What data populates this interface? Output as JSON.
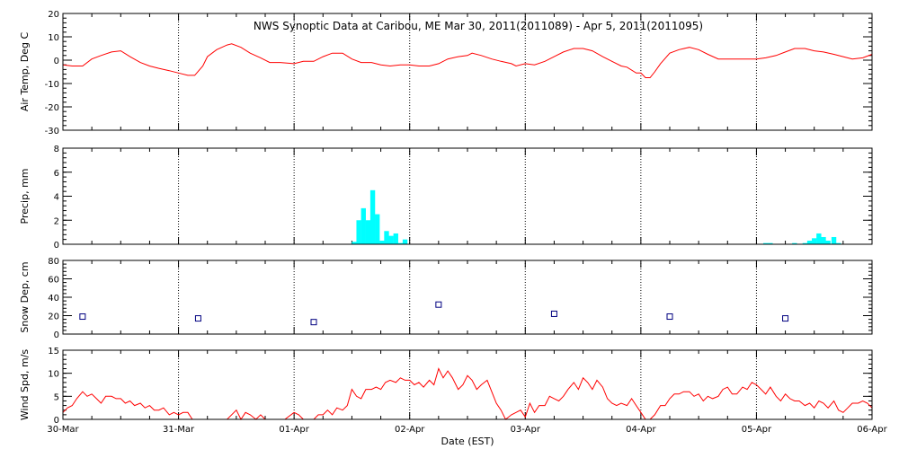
{
  "title": "NWS Synoptic Data at Caribou, ME   Mar 30, 2011(2011089) - Apr  5, 2011(2011095)",
  "xlabel": "Date (EST)",
  "x_ticks": [
    "30-Mar",
    "31-Mar",
    "01-Apr",
    "02-Apr",
    "03-Apr",
    "04-Apr",
    "05-Apr",
    "06-Apr"
  ],
  "colors": {
    "line": "#ff0000",
    "precip": "#00ffff",
    "snow": "#000080",
    "grid": "#000000"
  },
  "chart_data": [
    {
      "type": "line",
      "name": "air_temp",
      "ylabel": "Air Temp, Deg C",
      "ylim": [
        -30,
        20
      ],
      "yticks": [
        -30,
        -20,
        -10,
        0,
        10,
        20
      ],
      "xlim": [
        0,
        7
      ],
      "x_unit": "days since 30-Mar 00:00 EST",
      "grid": true,
      "points": [
        [
          0.0,
          -2.0
        ],
        [
          0.08,
          -2.5
        ],
        [
          0.17,
          -2.5
        ],
        [
          0.25,
          0.5
        ],
        [
          0.33,
          2.0
        ],
        [
          0.42,
          3.5
        ],
        [
          0.5,
          4.0
        ],
        [
          0.58,
          1.5
        ],
        [
          0.67,
          -1.0
        ],
        [
          0.75,
          -2.5
        ],
        [
          0.83,
          -3.5
        ],
        [
          0.92,
          -4.5
        ],
        [
          1.0,
          -5.5
        ],
        [
          1.08,
          -6.5
        ],
        [
          1.14,
          -6.5
        ],
        [
          1.21,
          -2.5
        ],
        [
          1.25,
          1.5
        ],
        [
          1.33,
          4.5
        ],
        [
          1.42,
          6.5
        ],
        [
          1.46,
          7.0
        ],
        [
          1.54,
          5.5
        ],
        [
          1.62,
          3.0
        ],
        [
          1.71,
          1.0
        ],
        [
          1.79,
          -1.0
        ],
        [
          1.88,
          -1.0
        ],
        [
          2.0,
          -1.5
        ],
        [
          2.08,
          -0.5
        ],
        [
          2.17,
          -0.5
        ],
        [
          2.25,
          1.5
        ],
        [
          2.33,
          3.0
        ],
        [
          2.42,
          3.0
        ],
        [
          2.5,
          0.5
        ],
        [
          2.58,
          -1.0
        ],
        [
          2.67,
          -1.0
        ],
        [
          2.75,
          -2.0
        ],
        [
          2.83,
          -2.5
        ],
        [
          2.92,
          -2.0
        ],
        [
          3.0,
          -2.0
        ],
        [
          3.08,
          -2.5
        ],
        [
          3.17,
          -2.5
        ],
        [
          3.25,
          -1.5
        ],
        [
          3.33,
          0.5
        ],
        [
          3.42,
          1.5
        ],
        [
          3.5,
          2.0
        ],
        [
          3.54,
          3.0
        ],
        [
          3.62,
          2.0
        ],
        [
          3.71,
          0.5
        ],
        [
          3.79,
          -0.5
        ],
        [
          3.88,
          -1.5
        ],
        [
          3.92,
          -2.5
        ],
        [
          4.0,
          -1.5
        ],
        [
          4.08,
          -2.0
        ],
        [
          4.17,
          -0.5
        ],
        [
          4.25,
          1.5
        ],
        [
          4.33,
          3.5
        ],
        [
          4.42,
          5.0
        ],
        [
          4.5,
          5.0
        ],
        [
          4.58,
          4.0
        ],
        [
          4.67,
          1.5
        ],
        [
          4.75,
          -0.5
        ],
        [
          4.83,
          -2.5
        ],
        [
          4.88,
          -3.0
        ],
        [
          4.96,
          -5.5
        ],
        [
          5.0,
          -5.5
        ],
        [
          5.04,
          -7.5
        ],
        [
          5.08,
          -7.5
        ],
        [
          5.12,
          -5.0
        ],
        [
          5.17,
          -1.5
        ],
        [
          5.25,
          3.0
        ],
        [
          5.33,
          4.5
        ],
        [
          5.42,
          5.5
        ],
        [
          5.5,
          4.5
        ],
        [
          5.58,
          2.5
        ],
        [
          5.67,
          0.5
        ],
        [
          5.75,
          0.5
        ],
        [
          5.83,
          0.5
        ],
        [
          5.92,
          0.5
        ],
        [
          6.0,
          0.5
        ],
        [
          6.08,
          1.0
        ],
        [
          6.17,
          2.0
        ],
        [
          6.25,
          3.5
        ],
        [
          6.33,
          5.0
        ],
        [
          6.42,
          5.0
        ],
        [
          6.5,
          4.0
        ],
        [
          6.58,
          3.5
        ],
        [
          6.67,
          2.5
        ],
        [
          6.75,
          1.5
        ],
        [
          6.83,
          0.5
        ],
        [
          6.92,
          1.0
        ],
        [
          7.0,
          2.5
        ]
      ]
    },
    {
      "type": "bar",
      "name": "precip",
      "ylabel": "Precip, mm",
      "ylim": [
        0,
        8
      ],
      "yticks": [
        0,
        2,
        4,
        6,
        8
      ],
      "xlim": [
        0,
        7
      ],
      "bar_width_days": 0.04167,
      "grid": true,
      "bars": [
        [
          2.52,
          0.2
        ],
        [
          2.56,
          2.0
        ],
        [
          2.6,
          3.0
        ],
        [
          2.64,
          2.0
        ],
        [
          2.68,
          4.5
        ],
        [
          2.72,
          2.5
        ],
        [
          2.76,
          0.3
        ],
        [
          2.8,
          1.1
        ],
        [
          2.84,
          0.7
        ],
        [
          2.88,
          0.9
        ],
        [
          2.92,
          0.1
        ],
        [
          2.96,
          0.4
        ],
        [
          6.08,
          0.1
        ],
        [
          6.12,
          0.1
        ],
        [
          6.33,
          0.1
        ],
        [
          6.42,
          0.1
        ],
        [
          6.46,
          0.3
        ],
        [
          6.5,
          0.5
        ],
        [
          6.54,
          0.9
        ],
        [
          6.58,
          0.6
        ],
        [
          6.62,
          0.3
        ],
        [
          6.67,
          0.6
        ],
        [
          6.71,
          0.1
        ]
      ]
    },
    {
      "type": "scatter",
      "name": "snow_depth",
      "ylabel": "Snow Dep, cm",
      "ylim": [
        0,
        80
      ],
      "yticks": [
        0,
        20,
        40,
        60,
        80
      ],
      "xlim": [
        0,
        7
      ],
      "grid": true,
      "points": [
        [
          0.17,
          19
        ],
        [
          1.17,
          17
        ],
        [
          2.17,
          13
        ],
        [
          3.25,
          32
        ],
        [
          4.25,
          22
        ],
        [
          5.25,
          19
        ],
        [
          6.25,
          17
        ]
      ]
    },
    {
      "type": "line",
      "name": "wind_speed",
      "ylabel": "Wind Spd, m/s",
      "ylim": [
        0,
        15
      ],
      "yticks": [
        0,
        5,
        10,
        15
      ],
      "xlim": [
        0,
        7
      ],
      "grid": true,
      "points": [
        [
          0.0,
          1.5
        ],
        [
          0.04,
          2.5
        ],
        [
          0.08,
          3.0
        ],
        [
          0.12,
          4.5
        ],
        [
          0.17,
          6.0
        ],
        [
          0.21,
          5.0
        ],
        [
          0.25,
          5.5
        ],
        [
          0.29,
          4.5
        ],
        [
          0.33,
          3.5
        ],
        [
          0.37,
          5.0
        ],
        [
          0.42,
          5.0
        ],
        [
          0.46,
          4.5
        ],
        [
          0.5,
          4.5
        ],
        [
          0.54,
          3.5
        ],
        [
          0.58,
          4.0
        ],
        [
          0.62,
          3.0
        ],
        [
          0.67,
          3.5
        ],
        [
          0.71,
          2.5
        ],
        [
          0.75,
          3.0
        ],
        [
          0.79,
          2.0
        ],
        [
          0.83,
          2.0
        ],
        [
          0.87,
          2.5
        ],
        [
          0.92,
          1.0
        ],
        [
          0.96,
          1.5
        ],
        [
          1.0,
          1.0
        ],
        [
          1.04,
          1.5
        ],
        [
          1.08,
          1.5
        ],
        [
          1.12,
          0.0
        ],
        [
          1.17,
          0.0
        ],
        [
          1.21,
          0.0
        ],
        [
          1.25,
          0.0
        ],
        [
          1.33,
          0.0
        ],
        [
          1.42,
          0.0
        ],
        [
          1.5,
          2.0
        ],
        [
          1.54,
          0.0
        ],
        [
          1.58,
          1.5
        ],
        [
          1.62,
          1.0
        ],
        [
          1.67,
          0.0
        ],
        [
          1.71,
          1.0
        ],
        [
          1.75,
          0.0
        ],
        [
          1.79,
          0.0
        ],
        [
          1.83,
          0.0
        ],
        [
          1.88,
          0.0
        ],
        [
          1.92,
          0.0
        ],
        [
          2.0,
          1.5
        ],
        [
          2.04,
          1.0
        ],
        [
          2.08,
          0.0
        ],
        [
          2.12,
          0.0
        ],
        [
          2.17,
          0.0
        ],
        [
          2.21,
          1.0
        ],
        [
          2.25,
          1.0
        ],
        [
          2.29,
          2.0
        ],
        [
          2.33,
          1.0
        ],
        [
          2.37,
          2.5
        ],
        [
          2.42,
          2.0
        ],
        [
          2.46,
          3.0
        ],
        [
          2.5,
          6.5
        ],
        [
          2.54,
          5.0
        ],
        [
          2.58,
          4.5
        ],
        [
          2.62,
          6.5
        ],
        [
          2.67,
          6.5
        ],
        [
          2.71,
          7.0
        ],
        [
          2.75,
          6.5
        ],
        [
          2.79,
          8.0
        ],
        [
          2.83,
          8.5
        ],
        [
          2.88,
          8.0
        ],
        [
          2.92,
          9.0
        ],
        [
          2.96,
          8.5
        ],
        [
          3.0,
          8.5
        ],
        [
          3.04,
          7.5
        ],
        [
          3.08,
          8.0
        ],
        [
          3.12,
          7.0
        ],
        [
          3.17,
          8.5
        ],
        [
          3.21,
          7.5
        ],
        [
          3.25,
          11.0
        ],
        [
          3.29,
          9.0
        ],
        [
          3.33,
          10.5
        ],
        [
          3.37,
          9.0
        ],
        [
          3.42,
          6.5
        ],
        [
          3.46,
          7.5
        ],
        [
          3.5,
          9.5
        ],
        [
          3.54,
          8.5
        ],
        [
          3.58,
          6.5
        ],
        [
          3.62,
          7.5
        ],
        [
          3.67,
          8.5
        ],
        [
          3.71,
          6.0
        ],
        [
          3.75,
          3.5
        ],
        [
          3.79,
          2.0
        ],
        [
          3.83,
          0.0
        ],
        [
          3.88,
          1.0
        ],
        [
          3.92,
          1.5
        ],
        [
          3.96,
          2.0
        ],
        [
          4.0,
          0.5
        ],
        [
          4.04,
          3.5
        ],
        [
          4.08,
          1.5
        ],
        [
          4.12,
          3.0
        ],
        [
          4.17,
          3.0
        ],
        [
          4.21,
          5.0
        ],
        [
          4.25,
          4.5
        ],
        [
          4.29,
          4.0
        ],
        [
          4.33,
          5.0
        ],
        [
          4.37,
          6.5
        ],
        [
          4.42,
          8.0
        ],
        [
          4.46,
          6.5
        ],
        [
          4.5,
          9.0
        ],
        [
          4.54,
          8.0
        ],
        [
          4.58,
          6.5
        ],
        [
          4.62,
          8.5
        ],
        [
          4.67,
          7.0
        ],
        [
          4.71,
          4.5
        ],
        [
          4.75,
          3.5
        ],
        [
          4.79,
          3.0
        ],
        [
          4.83,
          3.5
        ],
        [
          4.88,
          3.0
        ],
        [
          4.92,
          4.5
        ],
        [
          4.96,
          3.0
        ],
        [
          5.0,
          1.5
        ],
        [
          5.04,
          0.0
        ],
        [
          5.08,
          0.0
        ],
        [
          5.12,
          1.0
        ],
        [
          5.17,
          3.0
        ],
        [
          5.21,
          3.0
        ],
        [
          5.25,
          4.5
        ],
        [
          5.29,
          5.5
        ],
        [
          5.33,
          5.5
        ],
        [
          5.37,
          6.0
        ],
        [
          5.42,
          6.0
        ],
        [
          5.46,
          5.0
        ],
        [
          5.5,
          5.5
        ],
        [
          5.54,
          4.0
        ],
        [
          5.58,
          5.0
        ],
        [
          5.62,
          4.5
        ],
        [
          5.67,
          5.0
        ],
        [
          5.71,
          6.5
        ],
        [
          5.75,
          7.0
        ],
        [
          5.79,
          5.5
        ],
        [
          5.83,
          5.5
        ],
        [
          5.88,
          7.0
        ],
        [
          5.92,
          6.5
        ],
        [
          5.96,
          8.0
        ],
        [
          6.0,
          7.5
        ],
        [
          6.04,
          6.5
        ],
        [
          6.08,
          5.5
        ],
        [
          6.12,
          7.0
        ],
        [
          6.17,
          5.0
        ],
        [
          6.21,
          4.0
        ],
        [
          6.25,
          5.5
        ],
        [
          6.29,
          4.5
        ],
        [
          6.33,
          4.0
        ],
        [
          6.37,
          4.0
        ],
        [
          6.42,
          3.0
        ],
        [
          6.46,
          3.5
        ],
        [
          6.5,
          2.5
        ],
        [
          6.54,
          4.0
        ],
        [
          6.58,
          3.5
        ],
        [
          6.62,
          2.5
        ],
        [
          6.67,
          4.0
        ],
        [
          6.71,
          2.0
        ],
        [
          6.75,
          1.5
        ],
        [
          6.79,
          2.5
        ],
        [
          6.83,
          3.5
        ],
        [
          6.88,
          3.5
        ],
        [
          6.92,
          4.0
        ],
        [
          6.96,
          3.5
        ],
        [
          7.0,
          2.5
        ]
      ]
    }
  ]
}
